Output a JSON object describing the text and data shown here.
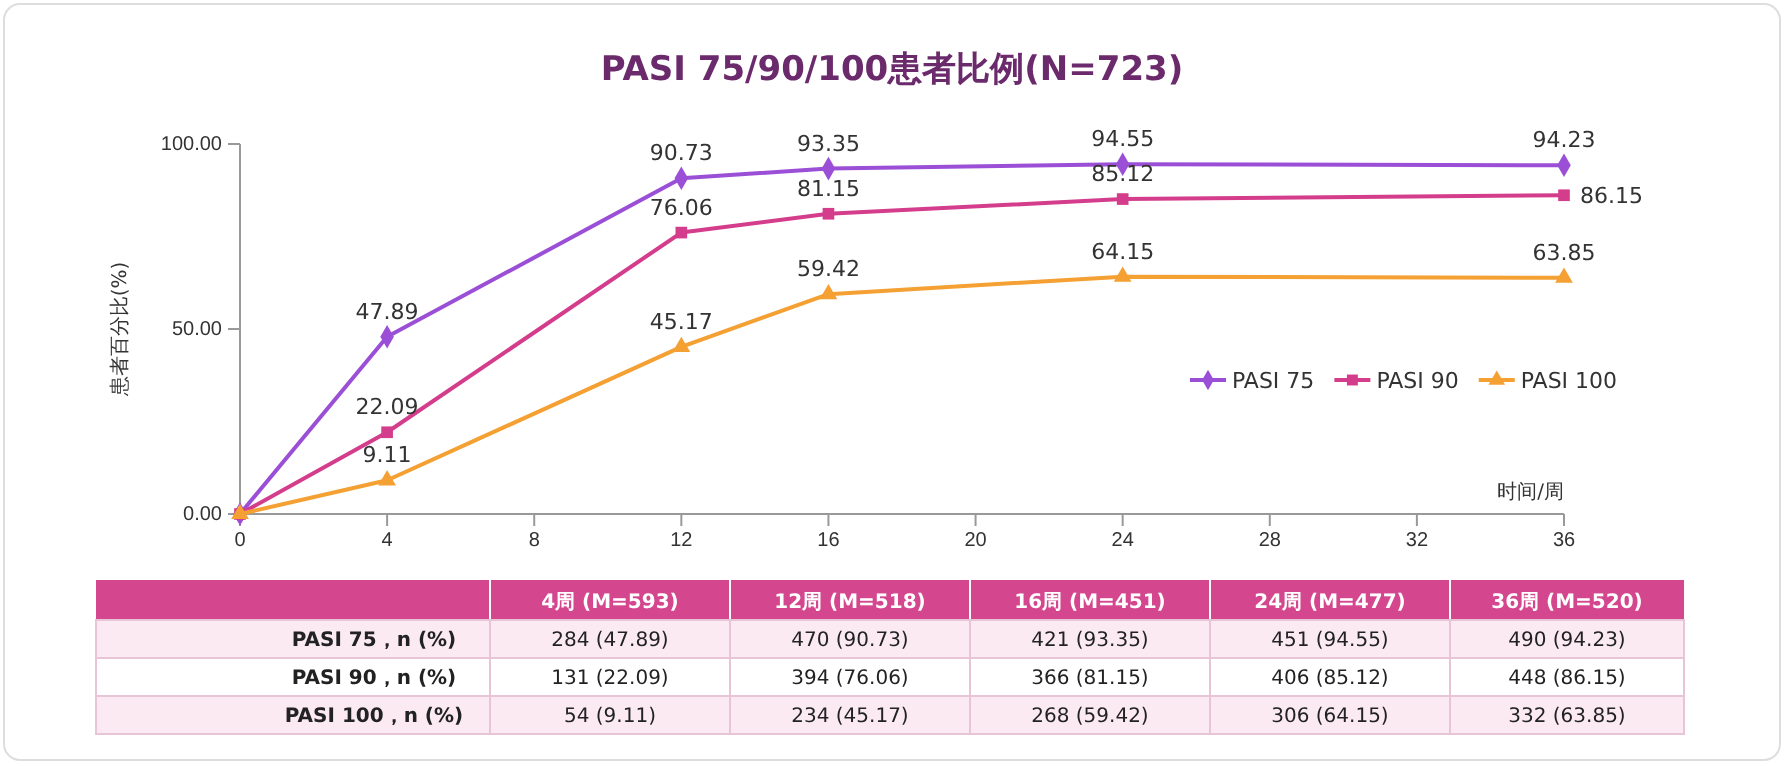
{
  "chart_data": {
    "type": "line",
    "title": "PASI 75/90/100患者比例(N=723)",
    "xlabel": "时间/周",
    "ylabel": "患者百分比(%)",
    "x": [
      0,
      4,
      12,
      16,
      24,
      36
    ],
    "xlim": [
      0,
      36
    ],
    "xticks": [
      0,
      4,
      8,
      12,
      16,
      20,
      24,
      28,
      32,
      36
    ],
    "ylim": [
      0,
      100
    ],
    "yticks": [
      {
        "value": 0,
        "label": "0.00"
      },
      {
        "value": 50,
        "label": "50.00"
      },
      {
        "value": 100,
        "label": "100.00"
      }
    ],
    "grid": false,
    "legend": "right",
    "series": [
      {
        "name": "PASI 75",
        "color": "#9b4fd6",
        "marker": "diamond",
        "values": [
          0,
          47.89,
          90.73,
          93.35,
          94.55,
          94.23
        ],
        "value_labels": [
          null,
          "47.89",
          "90.73",
          "93.35",
          "94.55",
          "94.23"
        ]
      },
      {
        "name": "PASI 90",
        "color": "#d43d8c",
        "marker": "square",
        "values": [
          0,
          22.09,
          76.06,
          81.15,
          85.12,
          86.15
        ],
        "value_labels": [
          null,
          "22.09",
          "76.06",
          "81.15",
          "85.12",
          "86.15"
        ]
      },
      {
        "name": "PASI 100",
        "color": "#f5a033",
        "marker": "triangle",
        "values": [
          0,
          9.11,
          45.17,
          59.42,
          64.15,
          63.85
        ],
        "value_labels": [
          null,
          "9.11",
          "45.17",
          "59.42",
          "64.15",
          "63.85"
        ]
      }
    ],
    "annotations": [
      "4周 (M=593)",
      "12周 (M=518)",
      "16周 (M=451)",
      "24周 (M=477)",
      "36周 (M=520)",
      "PASI 75，n (%)",
      "284 (47.89)",
      "470 (90.73)",
      "421 (93.35)",
      "451 (94.55)",
      "490 (94.23)",
      "PASI 90，n (%)",
      "131 (22.09)",
      "394 (76.06)",
      "366 (81.15)",
      "406 (85.12)",
      "448 (86.15)",
      "PASI 100，n (%)",
      "54 (9.11)",
      "234 (45.17)",
      "268 (59.42)",
      "306 (64.15)",
      "332 (63.85)"
    ]
  }
}
